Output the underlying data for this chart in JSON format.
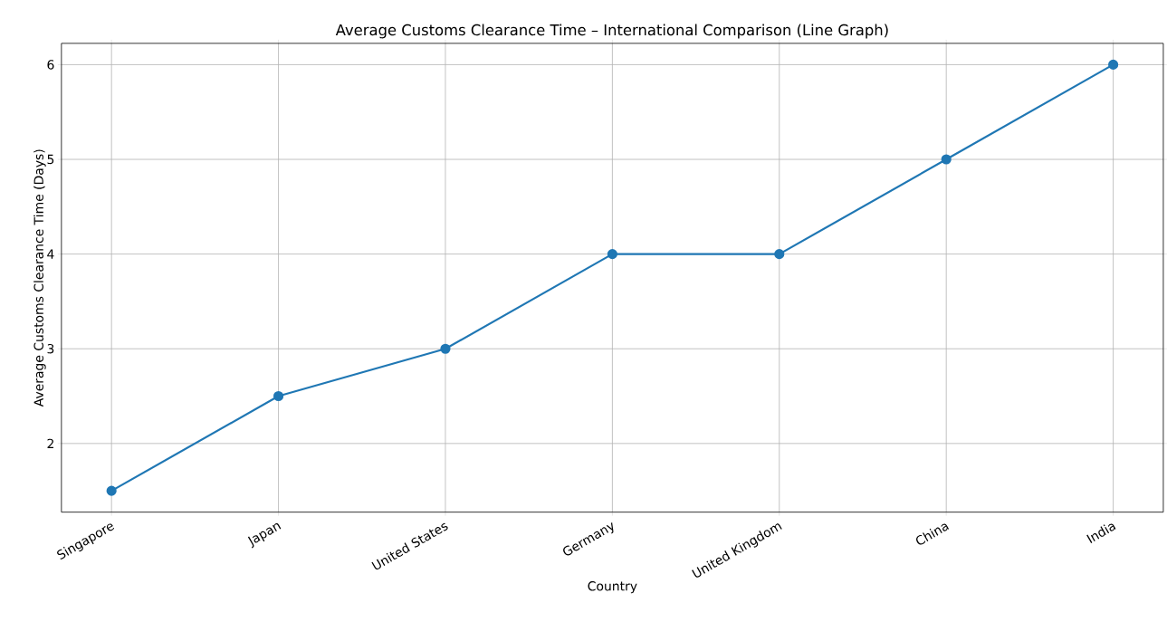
{
  "chart_data": {
    "type": "line",
    "title": "Average Customs Clearance Time – International Comparison (Line Graph)",
    "xlabel": "Country",
    "ylabel": "Average Customs Clearance Time (Days)",
    "categories": [
      "Singapore",
      "Japan",
      "United States",
      "Germany",
      "United Kingdom",
      "China",
      "India"
    ],
    "series": [
      {
        "color": "#1f77b4",
        "values": [
          1.5,
          2.5,
          3,
          4,
          4,
          5,
          6
        ]
      }
    ],
    "ylim": [
      1.275,
      6.225
    ],
    "yticks": [
      2,
      3,
      4,
      5,
      6
    ],
    "grid": true,
    "marker": "circle",
    "line_style": "solid"
  }
}
